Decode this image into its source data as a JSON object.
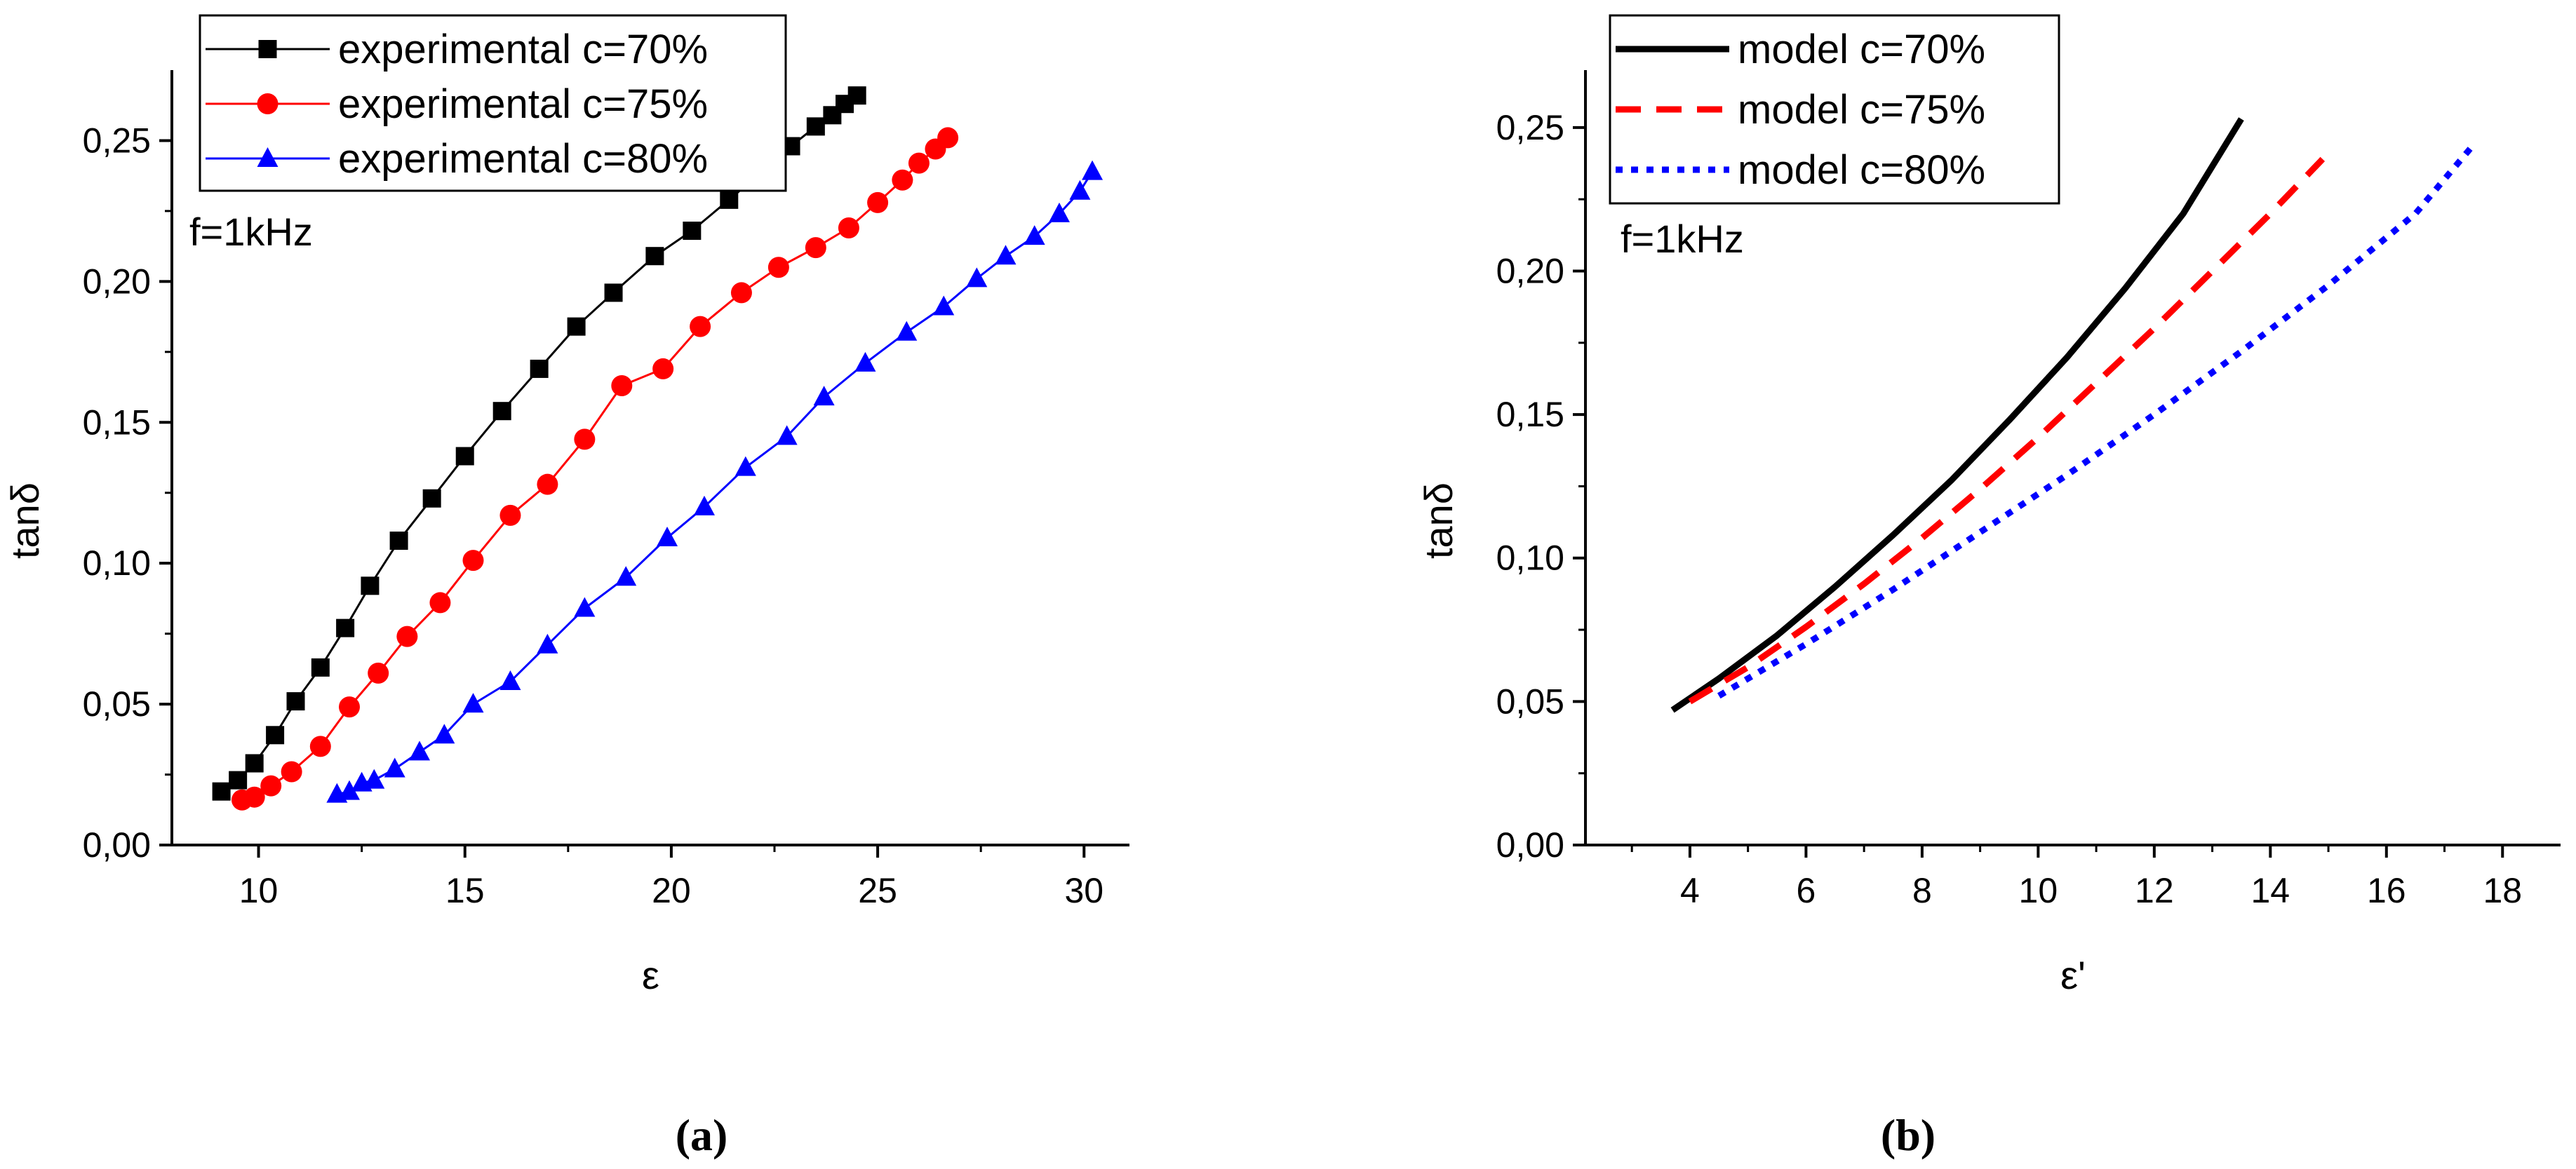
{
  "chart_data": [
    {
      "type": "line",
      "panel_caption": "(a)",
      "xlabel": "ε",
      "ylabel": "tanδ",
      "xlim": [
        7.9,
        31.1
      ],
      "ylim": [
        0,
        0.275
      ],
      "x_ticks": [
        10,
        15,
        20,
        25,
        30
      ],
      "x_tick_labels": [
        "10",
        "15",
        "20",
        "25",
        "30"
      ],
      "y_ticks": [
        0,
        0.05,
        0.1,
        0.15,
        0.2,
        0.25
      ],
      "y_tick_labels": [
        "0,00",
        "0,05",
        "0,10",
        "0,15",
        "0,20",
        "0,25"
      ],
      "annotation": "f=1kHz",
      "legend_position": "top-left",
      "series": [
        {
          "name": "experimental c=70%",
          "color": "#000000",
          "marker": "square",
          "line_style": "solid",
          "x": [
            9.1,
            9.5,
            9.9,
            10.4,
            10.9,
            11.5,
            12.1,
            12.7,
            13.4,
            14.2,
            15.0,
            15.9,
            16.8,
            17.7,
            18.6,
            19.6,
            20.5,
            21.4,
            22.2,
            22.9,
            23.5,
            23.9,
            24.2,
            24.5
          ],
          "y": [
            0.019,
            0.023,
            0.029,
            0.039,
            0.051,
            0.063,
            0.077,
            0.092,
            0.108,
            0.123,
            0.138,
            0.154,
            0.169,
            0.184,
            0.196,
            0.209,
            0.218,
            0.229,
            0.239,
            0.248,
            0.255,
            0.259,
            0.263,
            0.266
          ]
        },
        {
          "name": "experimental c=75%",
          "color": "#ff0000",
          "marker": "circle",
          "line_style": "solid",
          "x": [
            9.6,
            9.9,
            10.3,
            10.8,
            11.5,
            12.2,
            12.9,
            13.6,
            14.4,
            15.2,
            16.1,
            17.0,
            17.9,
            18.8,
            19.8,
            20.7,
            21.7,
            22.6,
            23.5,
            24.3,
            25.0,
            25.6,
            26.0,
            26.4,
            26.7
          ],
          "y": [
            0.016,
            0.017,
            0.021,
            0.026,
            0.035,
            0.049,
            0.061,
            0.074,
            0.086,
            0.101,
            0.117,
            0.128,
            0.144,
            0.163,
            0.169,
            0.184,
            0.196,
            0.205,
            0.212,
            0.219,
            0.228,
            0.236,
            0.242,
            0.247,
            0.251
          ]
        },
        {
          "name": "experimental c=80%",
          "color": "#0000ff",
          "marker": "triangle",
          "line_style": "solid",
          "x": [
            11.9,
            12.2,
            12.5,
            12.8,
            13.3,
            13.9,
            14.5,
            15.2,
            16.1,
            17.0,
            17.9,
            18.9,
            19.9,
            20.8,
            21.8,
            22.8,
            23.7,
            24.7,
            25.7,
            26.6,
            27.4,
            28.1,
            28.8,
            29.4,
            29.9,
            30.2
          ],
          "y": [
            0.018,
            0.019,
            0.022,
            0.023,
            0.027,
            0.033,
            0.039,
            0.05,
            0.058,
            0.071,
            0.084,
            0.095,
            0.109,
            0.12,
            0.134,
            0.145,
            0.159,
            0.171,
            0.182,
            0.191,
            0.201,
            0.209,
            0.216,
            0.224,
            0.232,
            0.239
          ]
        }
      ]
    },
    {
      "type": "line",
      "panel_caption": "(b)",
      "xlabel": "ε'",
      "ylabel": "tanδ",
      "xlim": [
        2.2,
        19.0
      ],
      "ylim": [
        0,
        0.27
      ],
      "x_ticks": [
        4,
        6,
        8,
        10,
        12,
        14,
        16,
        18
      ],
      "x_tick_labels": [
        "4",
        "6",
        "8",
        "10",
        "12",
        "14",
        "16",
        "18"
      ],
      "y_ticks": [
        0,
        0.05,
        0.1,
        0.15,
        0.2,
        0.25
      ],
      "y_tick_labels": [
        "0,00",
        "0,05",
        "0,10",
        "0,15",
        "0,20",
        "0,25"
      ],
      "annotation": "f=1kHz",
      "legend_position": "top-left",
      "series": [
        {
          "name": "model c=70%",
          "color": "#000000",
          "marker": "none",
          "line_style": "solid",
          "x": [
            3.7,
            4.5,
            5.5,
            6.5,
            7.5,
            8.5,
            9.5,
            10.5,
            11.5,
            12.5,
            13.5
          ],
          "y": [
            0.047,
            0.058,
            0.073,
            0.09,
            0.108,
            0.127,
            0.148,
            0.17,
            0.194,
            0.22,
            0.253
          ]
        },
        {
          "name": "model c=75%",
          "color": "#ff0000",
          "marker": "none",
          "line_style": "dashed",
          "x": [
            4.0,
            5.0,
            6.0,
            7.0,
            8.0,
            9.0,
            10.0,
            11.0,
            12.0,
            13.0,
            14.0,
            14.9
          ],
          "y": [
            0.05,
            0.062,
            0.076,
            0.091,
            0.107,
            0.124,
            0.142,
            0.161,
            0.18,
            0.2,
            0.22,
            0.239
          ]
        },
        {
          "name": "model c=80%",
          "color": "#0000ff",
          "marker": "none",
          "line_style": "dotted",
          "x": [
            4.5,
            6.0,
            7.5,
            9.0,
            10.5,
            12.0,
            13.5,
            15.0,
            16.5,
            17.5
          ],
          "y": [
            0.052,
            0.07,
            0.089,
            0.109,
            0.129,
            0.15,
            0.172,
            0.195,
            0.22,
            0.244
          ]
        }
      ]
    }
  ]
}
